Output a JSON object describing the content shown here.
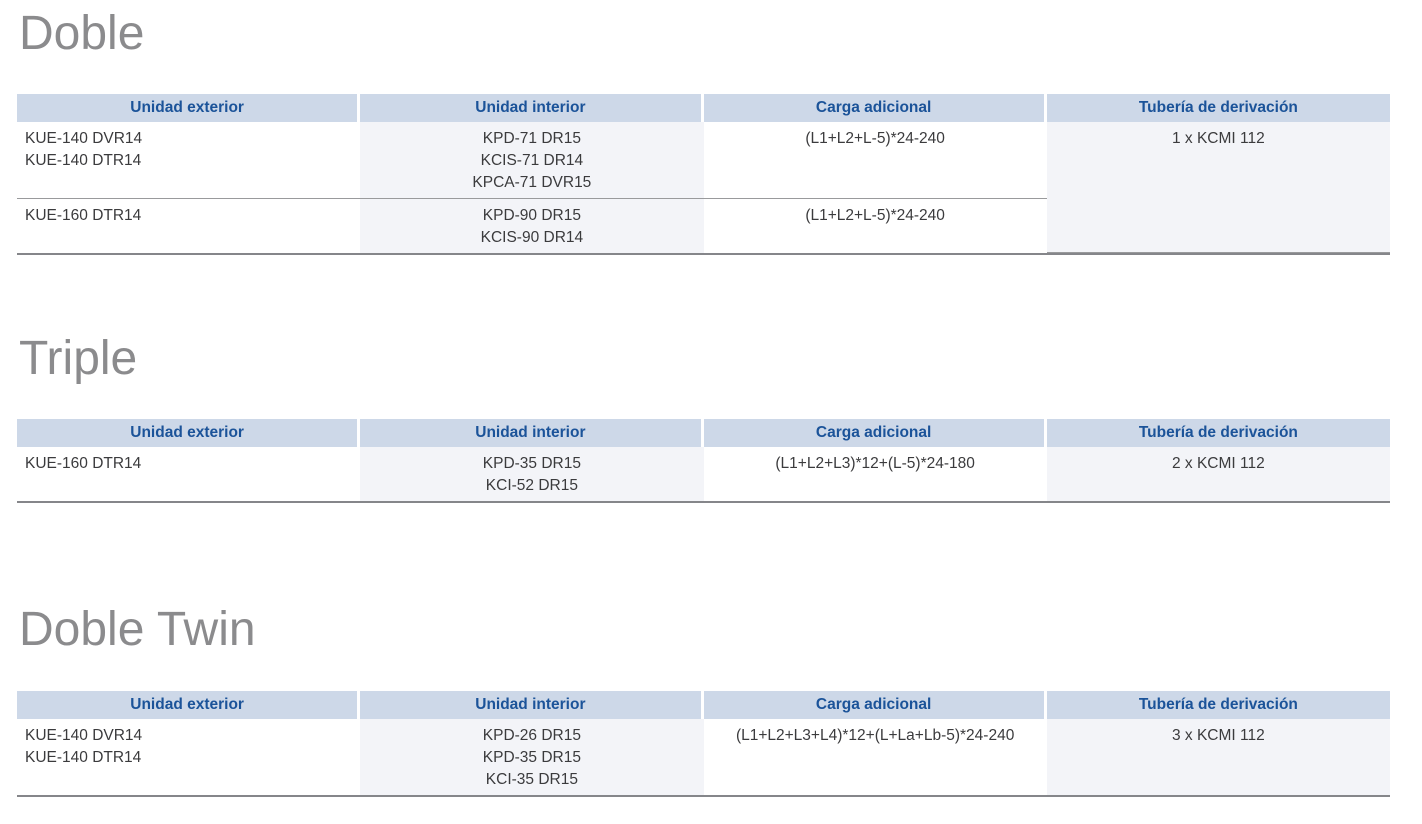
{
  "colors": {
    "header_bg": "#cdd8e8",
    "header_text": "#1b5399",
    "alt_column_bg": "#f3f4f8",
    "body_text": "#3b3b3d",
    "title_text": "#8b8b8d",
    "row_divider": "#999a9c",
    "table_bottom_border": "#85868a"
  },
  "columns": {
    "exterior": "Unidad exterior",
    "interior": "Unidad interior",
    "carga": "Carga adicional",
    "tuberia": "Tubería de derivación"
  },
  "sections": {
    "doble": {
      "title": "Doble",
      "rows": {
        "r1": {
          "exterior": [
            "KUE-140 DVR14",
            "KUE-140 DTR14"
          ],
          "interior": [
            "KPD-71 DR15",
            "KCIS-71 DR14",
            "KPCA-71 DVR15"
          ],
          "carga": "(L1+L2+L-5)*24-240",
          "tuberia": "1 x KCMI 112"
        },
        "r2": {
          "exterior": [
            "KUE-160 DTR14"
          ],
          "interior": [
            "KPD-90 DR15",
            "KCIS-90 DR14"
          ],
          "carga": "(L1+L2+L-5)*24-240"
        }
      }
    },
    "triple": {
      "title": "Triple",
      "rows": {
        "r1": {
          "exterior": [
            "KUE-160 DTR14"
          ],
          "interior": [
            "KPD-35 DR15",
            "KCI-52 DR15"
          ],
          "carga": "(L1+L2+L3)*12+(L-5)*24-180",
          "tuberia": "2 x KCMI 112"
        }
      }
    },
    "doble_twin": {
      "title": "Doble Twin",
      "rows": {
        "r1": {
          "exterior": [
            "KUE-140 DVR14",
            "KUE-140 DTR14"
          ],
          "interior": [
            "KPD-26 DR15",
            "KPD-35 DR15",
            "KCI-35 DR15"
          ],
          "carga": "(L1+L2+L3+L4)*12+(L+La+Lb-5)*24-240",
          "tuberia": "3 x KCMI 112"
        }
      }
    }
  }
}
